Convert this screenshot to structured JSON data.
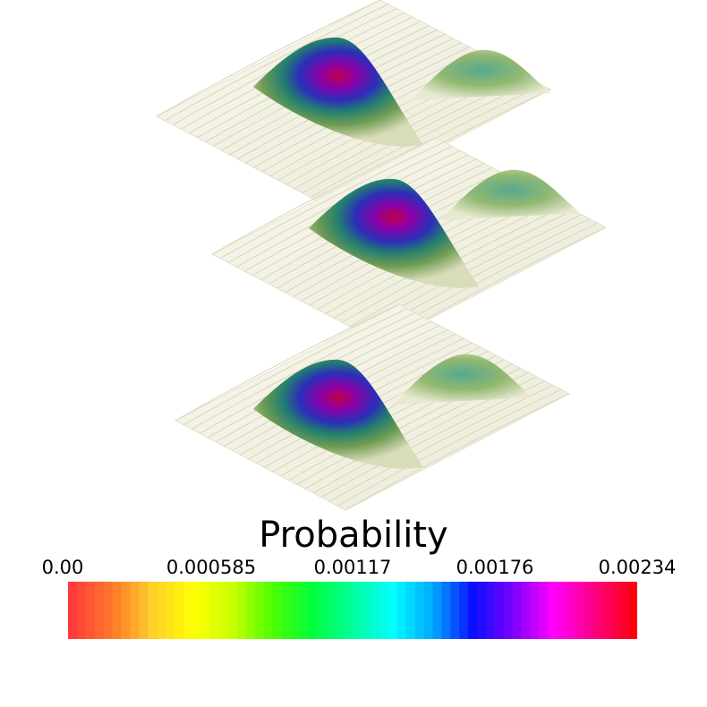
{
  "scene": {
    "surfaces": [
      "surface-top",
      "surface-middle",
      "surface-bottom"
    ],
    "background": "#ffffff"
  },
  "colorbar": {
    "title": "Probability",
    "ticks": [
      "0.00",
      "0.000585",
      "0.00117",
      "0.00176",
      "0.00234"
    ],
    "range": [
      0.0,
      0.00234
    ],
    "colormap": [
      "#ff3b3b",
      "#ff7a2a",
      "#ffcf2a",
      "#ffff00",
      "#c8ff00",
      "#4cff00",
      "#00ff3c",
      "#00ff9c",
      "#00ffff",
      "#00a8ff",
      "#0a10ff",
      "#7a00ff",
      "#ff00ff",
      "#ff0088",
      "#ff0010"
    ]
  }
}
